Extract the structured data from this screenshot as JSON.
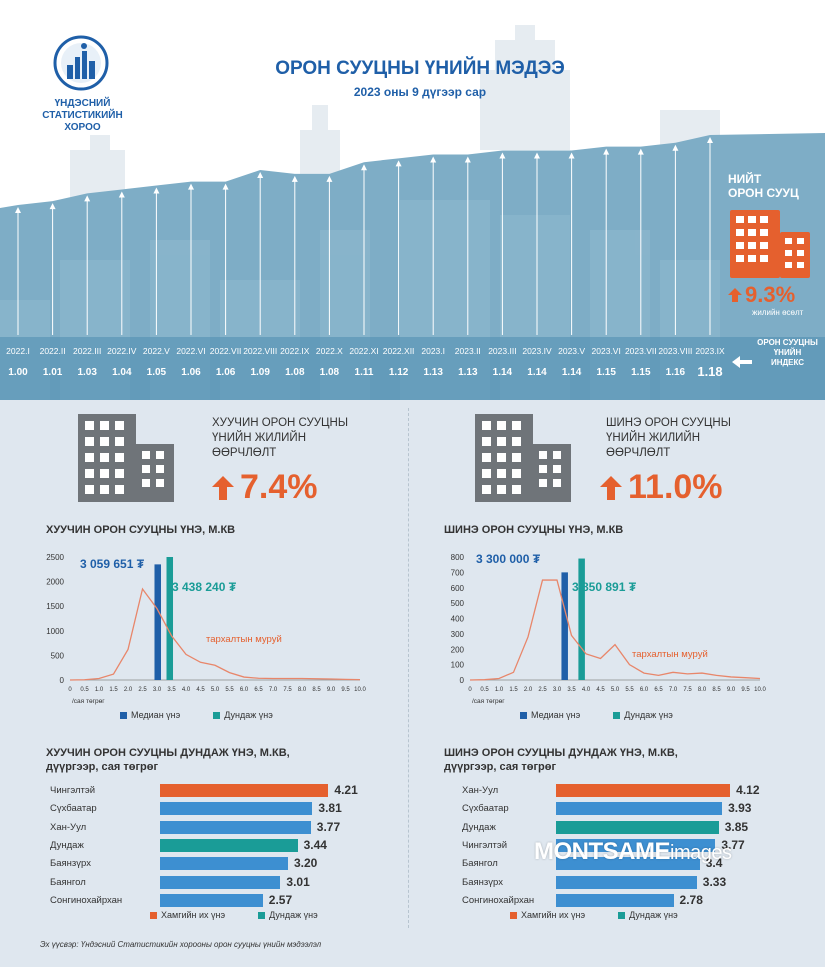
{
  "header": {
    "title": "ОРОН СУУЦНЫ ҮНИЙН МЭДЭЭ",
    "subtitle": "2023 оны 9 дүгээр сар",
    "logo_text": [
      "ҮНДЭСНИЙ",
      "СТАТИСТИКИЙН",
      "ХОРОО"
    ]
  },
  "colors": {
    "accent_orange": "#e5602e",
    "median_blue": "#1f5fa8",
    "average_teal": "#1a9c97",
    "bar_blue": "#3d8fd1",
    "building_gray": "#6f7479",
    "sky_blue": "#6ea3be"
  },
  "index_panel": {
    "title_lines": [
      "НИЙТ",
      "ОРОН СУУЦ"
    ],
    "annual_change": "9.3%",
    "annual_change_label": "жилийн өсөлт",
    "index_label": [
      "ОРОН СУУЦНЫ",
      "ҮНИЙН",
      "ИНДЕКС"
    ]
  },
  "chart_data": [
    {
      "id": "housing-price-index",
      "type": "bar",
      "categories": [
        "2022.I",
        "2022.II",
        "2022.III",
        "2022.IV",
        "2022.V",
        "2022.VI",
        "2022.VII",
        "2022.VIII",
        "2022.IX",
        "2022.X",
        "2022.XI",
        "2022.XII",
        "2023.I",
        "2023.II",
        "2023.III",
        "2023.IV",
        "2023.V",
        "2023.VI",
        "2023.VII",
        "2023.VIII",
        "2023.IX"
      ],
      "values": [
        1.0,
        1.01,
        1.03,
        1.04,
        1.05,
        1.06,
        1.06,
        1.09,
        1.08,
        1.08,
        1.11,
        1.12,
        1.13,
        1.13,
        1.14,
        1.14,
        1.14,
        1.15,
        1.15,
        1.16,
        1.18
      ],
      "value_labels": [
        "1.00",
        "1.01",
        "1.03",
        "1.04",
        "1.05",
        "1.06",
        "1.06",
        "1.09",
        "1.08",
        "1.08",
        "1.11",
        "1.12",
        "1.13",
        "1.13",
        "1.14",
        "1.14",
        "1.14",
        "1.15",
        "1.15",
        "1.16",
        "1.18"
      ]
    },
    {
      "id": "old-distribution",
      "type": "line",
      "title": "ХУУЧИН ОРОН СУУЦНЫ ҮНЭ, м.кв",
      "xlabel": "/сая төгрөг",
      "x": [
        0,
        0.5,
        1.0,
        1.5,
        2.0,
        2.5,
        3.0,
        3.5,
        4.0,
        4.5,
        5.0,
        5.5,
        6.0,
        6.5,
        7.0,
        7.5,
        8.0,
        8.5,
        9.0,
        9.5,
        10.0
      ],
      "x_ticks": [
        "0",
        "0.5",
        "1.0",
        "1.5",
        "2.0",
        "2.5",
        "3.0",
        "3.5",
        "4.0",
        "4.5",
        "5.0",
        "5.5",
        "6.0",
        "6.5",
        "7.0",
        "7.5",
        "8.0",
        "8.5",
        "9.0",
        "9.5",
        "10.0"
      ],
      "y": [
        0,
        5,
        30,
        120,
        620,
        1850,
        1450,
        900,
        520,
        360,
        300,
        150,
        60,
        35,
        30,
        30,
        30,
        25,
        20,
        12,
        8
      ],
      "ylim": [
        0,
        2500
      ],
      "y_ticks": [
        "0",
        "500",
        "1000",
        "1500",
        "2000",
        "2500"
      ],
      "median": 3.06,
      "average": 3.44,
      "median_bar_height": 2350,
      "average_bar_height": 2500,
      "median_label": "3 059 651 ₮",
      "average_label": "3 438 240 ₮",
      "curve_label": "тархалтын муруй",
      "legend": [
        "Медиан үнэ",
        "Дундаж үнэ"
      ]
    },
    {
      "id": "new-distribution",
      "type": "line",
      "title": "ШИНЭ ОРОН СУУЦНЫ ҮНЭ, м.кв",
      "xlabel": "/сая төгрөг",
      "x": [
        0,
        0.5,
        1.0,
        1.5,
        2.0,
        2.5,
        3.0,
        3.5,
        4.0,
        4.5,
        5.0,
        5.5,
        6.0,
        6.5,
        7.0,
        7.5,
        8.0,
        8.5,
        9.0,
        9.5,
        10.0
      ],
      "x_ticks": [
        "0",
        "0.5",
        "1.0",
        "1.5",
        "2.0",
        "2.5",
        "3.0",
        "3.5",
        "4.0",
        "4.5",
        "5.0",
        "5.5",
        "6.0",
        "6.5",
        "7.0",
        "7.5",
        "8.0",
        "8.5",
        "9.0",
        "9.5",
        "10.0"
      ],
      "y": [
        0,
        2,
        10,
        50,
        280,
        650,
        650,
        290,
        170,
        140,
        230,
        100,
        45,
        30,
        50,
        40,
        45,
        30,
        20,
        15,
        10
      ],
      "ylim": [
        0,
        800
      ],
      "y_ticks": [
        "0",
        "100",
        "200",
        "300",
        "400",
        "500",
        "600",
        "700",
        "800"
      ],
      "median": 3.3,
      "average": 3.85,
      "median_bar_height": 700,
      "average_bar_height": 790,
      "median_label": "3 300 000 ₮",
      "average_label": "3 850 891 ₮",
      "curve_label": "тархалтын муруй",
      "legend": [
        "Медиан үнэ",
        "Дундаж үнэ"
      ]
    },
    {
      "id": "old-district",
      "type": "bar",
      "orientation": "horizontal",
      "title_lines": [
        "ХУУЧИН ОРОН СУУЦНЫ ДУНДАЖ ҮНЭ, м.кв,",
        "дүүргээр, сая төгрөг"
      ],
      "categories": [
        "Чингэлтэй",
        "Сүхбаатар",
        "Хан-Уул",
        "Дундаж",
        "Баянзүрх",
        "Баянгол",
        "Сонгинохайрхан"
      ],
      "values": [
        4.21,
        3.81,
        3.77,
        3.44,
        3.2,
        3.01,
        2.57
      ],
      "value_labels": [
        "4.21",
        "3.81",
        "3.77",
        "3.44",
        "3.20",
        "3.01",
        "2.57"
      ],
      "highlight": [
        "max",
        "",
        "",
        "average",
        "",
        "",
        ""
      ],
      "xlim": [
        0,
        4.5
      ],
      "legend": [
        "Хамгийн их үнэ",
        "Дундаж үнэ"
      ]
    },
    {
      "id": "new-district",
      "type": "bar",
      "orientation": "horizontal",
      "title_lines": [
        "ШИНЭ ОРОН СУУЦНЫ ДУНДАЖ ҮНЭ, м.кв,",
        "дүүргээр, сая төгрөг"
      ],
      "categories": [
        "Хан-Уул",
        "Сүхбаатар",
        "Дундаж",
        "Чингэлтэй",
        "Баянгол",
        "Баянзүрх",
        "Сонгинохайрхан"
      ],
      "values": [
        4.12,
        3.93,
        3.85,
        3.77,
        3.4,
        3.33,
        2.78
      ],
      "value_labels": [
        "4.12",
        "3.93",
        "3.85",
        "3.77",
        "3.4",
        "3.33",
        "2.78"
      ],
      "highlight": [
        "max",
        "",
        "average",
        "",
        "",
        "",
        ""
      ],
      "xlim": [
        0,
        4.4
      ],
      "legend": [
        "Хамгийн их үнэ",
        "Дундаж үнэ"
      ]
    }
  ],
  "cards": {
    "old": {
      "title_lines": [
        "ХУУЧИН ОРОН СУУЦНЫ",
        "ҮНИЙН ЖИЛИЙН",
        "ӨӨРЧЛӨЛТ"
      ],
      "change": "7.4%"
    },
    "new": {
      "title_lines": [
        "ШИНЭ ОРОН СУУЦНЫ",
        "ҮНИЙН ЖИЛИЙН",
        "ӨӨРЧЛӨЛТ"
      ],
      "change": "11.0%"
    }
  },
  "source": "Эх үүсвэр: Үндэсний Статистикийн хорооны орон сууцны үнийн мэдээлэл",
  "watermark": {
    "bold": "MONTSAME",
    "light": "images"
  }
}
